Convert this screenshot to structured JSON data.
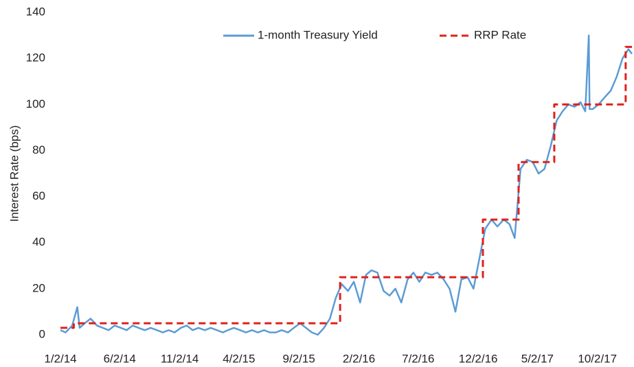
{
  "chart_data": {
    "type": "line",
    "y_label": "Interest Rate (bps)",
    "ylim": [
      0,
      140
    ],
    "yticks": [
      0,
      20,
      40,
      60,
      80,
      100,
      120,
      140
    ],
    "xlim": [
      "2014-01-02",
      "2017-12-29"
    ],
    "xticks": [
      {
        "value": "2014-01-02",
        "label": "1/2/14"
      },
      {
        "value": "2014-06-02",
        "label": "6/2/14"
      },
      {
        "value": "2014-11-02",
        "label": "11/2/14"
      },
      {
        "value": "2015-04-02",
        "label": "4/2/15"
      },
      {
        "value": "2015-09-02",
        "label": "9/2/15"
      },
      {
        "value": "2016-02-02",
        "label": "2/2/16"
      },
      {
        "value": "2016-07-02",
        "label": "7/2/16"
      },
      {
        "value": "2016-12-02",
        "label": "12/2/16"
      },
      {
        "value": "2017-05-02",
        "label": "5/2/17"
      },
      {
        "value": "2017-10-02",
        "label": "10/2/17"
      }
    ],
    "grid": false,
    "legend": "top",
    "series": [
      {
        "name": "1-month Treasury Yield",
        "color": "#5b9bd5",
        "style": "solid",
        "x": [
          "2014-01-02",
          "2014-01-15",
          "2014-02-01",
          "2014-02-14",
          "2014-02-20",
          "2014-03-05",
          "2014-03-20",
          "2014-04-05",
          "2014-04-20",
          "2014-05-05",
          "2014-05-20",
          "2014-06-05",
          "2014-06-20",
          "2014-07-05",
          "2014-07-20",
          "2014-08-05",
          "2014-08-20",
          "2014-09-05",
          "2014-09-20",
          "2014-10-05",
          "2014-10-20",
          "2014-11-05",
          "2014-11-20",
          "2014-12-05",
          "2014-12-20",
          "2015-01-05",
          "2015-01-20",
          "2015-02-05",
          "2015-02-20",
          "2015-03-05",
          "2015-03-20",
          "2015-04-05",
          "2015-04-20",
          "2015-05-05",
          "2015-05-20",
          "2015-06-05",
          "2015-06-20",
          "2015-07-05",
          "2015-07-20",
          "2015-08-05",
          "2015-08-20",
          "2015-09-05",
          "2015-09-20",
          "2015-10-05",
          "2015-10-20",
          "2015-11-05",
          "2015-11-20",
          "2015-12-05",
          "2015-12-20",
          "2016-01-05",
          "2016-01-20",
          "2016-02-05",
          "2016-02-20",
          "2016-03-05",
          "2016-03-20",
          "2016-04-05",
          "2016-04-20",
          "2016-05-05",
          "2016-05-20",
          "2016-06-05",
          "2016-06-20",
          "2016-07-05",
          "2016-07-20",
          "2016-08-05",
          "2016-08-20",
          "2016-09-05",
          "2016-09-20",
          "2016-10-05",
          "2016-10-20",
          "2016-11-05",
          "2016-11-20",
          "2016-12-05",
          "2016-12-20",
          "2017-01-05",
          "2017-01-20",
          "2017-02-05",
          "2017-02-20",
          "2017-03-05",
          "2017-03-20",
          "2017-04-05",
          "2017-04-20",
          "2017-05-05",
          "2017-05-20",
          "2017-06-05",
          "2017-06-20",
          "2017-07-05",
          "2017-07-20",
          "2017-08-05",
          "2017-08-20",
          "2017-09-01",
          "2017-09-10",
          "2017-09-12",
          "2017-09-20",
          "2017-10-05",
          "2017-10-20",
          "2017-11-05",
          "2017-11-20",
          "2017-12-05",
          "2017-12-20",
          "2017-12-29"
        ],
        "values": [
          2,
          1,
          4,
          12,
          3,
          5,
          7,
          4,
          3,
          2,
          4,
          3,
          2,
          4,
          3,
          2,
          3,
          2,
          1,
          2,
          1,
          3,
          4,
          2,
          3,
          2,
          3,
          2,
          1,
          2,
          3,
          2,
          1,
          2,
          1,
          2,
          1,
          1,
          2,
          1,
          3,
          5,
          3,
          1,
          0,
          3,
          7,
          16,
          22,
          19,
          23,
          14,
          26,
          28,
          27,
          19,
          17,
          20,
          14,
          24,
          27,
          23,
          27,
          26,
          27,
          24,
          20,
          10,
          24,
          25,
          20,
          33,
          46,
          50,
          47,
          50,
          48,
          42,
          72,
          76,
          75,
          70,
          72,
          82,
          93,
          97,
          100,
          99,
          101,
          97,
          130,
          98,
          98,
          100,
          103,
          106,
          112,
          120,
          124,
          122
        ]
      },
      {
        "name": "RRP Rate",
        "color": "#e0201b",
        "style": "dashed",
        "x": [
          "2014-01-02",
          "2014-02-05",
          "2014-02-05",
          "2015-12-16",
          "2015-12-16",
          "2016-12-14",
          "2016-12-14",
          "2017-03-15",
          "2017-03-15",
          "2017-06-14",
          "2017-06-14",
          "2017-12-13",
          "2017-12-13",
          "2017-12-29"
        ],
        "values": [
          3,
          3,
          5,
          5,
          25,
          25,
          50,
          50,
          75,
          75,
          100,
          100,
          125,
          125
        ]
      }
    ]
  }
}
